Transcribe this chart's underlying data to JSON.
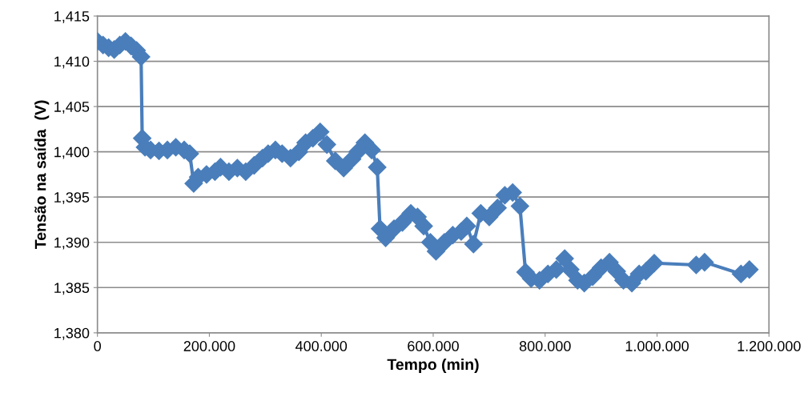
{
  "chart_data": {
    "type": "line",
    "xlabel": "Tempo (min)",
    "ylabel": "Tensão na saída  (V)",
    "x": [
      0,
      10000,
      20000,
      30000,
      40000,
      50000,
      60000,
      70000,
      78000,
      80000,
      85000,
      95000,
      110000,
      125000,
      140000,
      155000,
      165000,
      172000,
      180000,
      195000,
      210000,
      220000,
      235000,
      250000,
      265000,
      280000,
      295000,
      305000,
      318000,
      330000,
      345000,
      360000,
      372000,
      385000,
      398000,
      410000,
      425000,
      440000,
      455000,
      465000,
      478000,
      490000,
      500000,
      505000,
      515000,
      530000,
      545000,
      560000,
      572000,
      583000,
      595000,
      605000,
      620000,
      635000,
      650000,
      660000,
      672000,
      685000,
      700000,
      715000,
      728000,
      742000,
      755000,
      765000,
      775000,
      790000,
      805000,
      820000,
      835000,
      845000,
      858000,
      870000,
      885000,
      900000,
      915000,
      928000,
      940000,
      955000,
      968000,
      980000,
      995000,
      1070000,
      1085000,
      1150000,
      1165000
    ],
    "series": [
      {
        "color": "#4a7ebb",
        "values": [
          1.4122,
          1.4118,
          1.4115,
          1.4113,
          1.4118,
          1.4122,
          1.4117,
          1.4112,
          1.4105,
          1.4015,
          1.4005,
          1.4002,
          1.4001,
          1.4002,
          1.4005,
          1.4002,
          1.3998,
          1.3965,
          1.3972,
          1.3975,
          1.3978,
          1.3983,
          1.3978,
          1.3982,
          1.3978,
          1.3985,
          1.3993,
          1.3998,
          1.4002,
          1.3998,
          1.3993,
          1.4,
          1.401,
          1.4015,
          1.4022,
          1.4008,
          1.399,
          1.3982,
          1.3992,
          1.4,
          1.401,
          1.4002,
          1.3983,
          1.3915,
          1.3905,
          1.3915,
          1.3922,
          1.3932,
          1.3928,
          1.3918,
          1.39,
          1.389,
          1.39,
          1.3908,
          1.3912,
          1.3918,
          1.3898,
          1.3932,
          1.3928,
          1.3938,
          1.3952,
          1.3955,
          1.394,
          1.3867,
          1.386,
          1.3858,
          1.3865,
          1.387,
          1.3882,
          1.387,
          1.3858,
          1.3855,
          1.3862,
          1.3872,
          1.3878,
          1.3868,
          1.3858,
          1.3855,
          1.3865,
          1.3868,
          1.3877,
          1.3875,
          1.3878,
          1.3865,
          1.387
        ]
      }
    ],
    "xlim": [
      0,
      1200000
    ],
    "xticks": [
      0,
      {
        "value": 200000,
        "label": "200.000"
      },
      {
        "value": 400000,
        "label": "400.000"
      },
      {
        "value": 600000,
        "label": "600.000"
      },
      {
        "value": 800000,
        "label": "800.000"
      },
      {
        "value": 1000000,
        "label": "1.000.000"
      },
      {
        "value": 1200000,
        "label": "1.200.000"
      }
    ],
    "ylim": [
      1.38,
      1.415
    ],
    "yticks": [
      {
        "value": 1.38,
        "label": "1,380"
      },
      {
        "value": 1.385,
        "label": "1,385"
      },
      {
        "value": 1.39,
        "label": "1,390"
      },
      {
        "value": 1.395,
        "label": "1,395"
      },
      {
        "value": 1.4,
        "label": "1,400"
      },
      {
        "value": 1.405,
        "label": "1,405"
      },
      {
        "value": 1.41,
        "label": "1,410"
      },
      {
        "value": 1.415,
        "label": "1,415"
      }
    ],
    "grid": "y",
    "marker": "diamond",
    "line_style": "solid"
  }
}
